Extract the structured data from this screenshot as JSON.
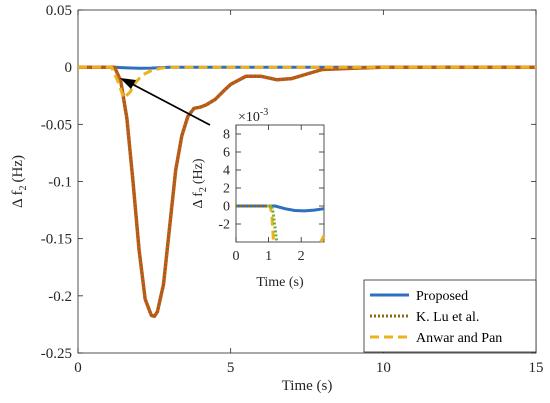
{
  "chart_data": [
    {
      "type": "line",
      "xlabel": "Time (s)",
      "ylabel": "Δ f2 (Hz)",
      "ylabel_base": "Δ f",
      "ylabel_sub": "2",
      "ylabel_unit": "(Hz)",
      "xlim": [
        0,
        15
      ],
      "ylim": [
        -0.25,
        0.05
      ],
      "xticks": [
        0,
        5,
        10,
        15
      ],
      "yticks": [
        0.05,
        0,
        -0.05,
        -0.1,
        -0.15,
        -0.2,
        -0.25
      ],
      "xtick_labels": [
        "0",
        "5",
        "10",
        "15"
      ],
      "ytick_labels": [
        "0.05",
        "0",
        "-0.05",
        "-0.1",
        "-0.15",
        "-0.2",
        "-0.25"
      ],
      "grid": false,
      "legend_position": "bottom-right",
      "series": [
        {
          "name": "Proposed",
          "color": "#2E6FC0",
          "style": "solid",
          "x": [
            0,
            1.2,
            1.5,
            2.0,
            2.4,
            2.8,
            3.0,
            15
          ],
          "y": [
            0,
            0,
            -0.0005,
            -0.001,
            -0.0008,
            -0.0003,
            0,
            0
          ]
        },
        {
          "name": "K. Lu et al.",
          "color": "#8B6A1A",
          "style": "dotted",
          "x": [
            0,
            1.2,
            1.4,
            1.6,
            1.8,
            2.0,
            2.2,
            2.4,
            2.5,
            2.6,
            2.8,
            3.0,
            3.2,
            3.4,
            3.6,
            3.8,
            4.0,
            4.2,
            4.5,
            4.8,
            5.0,
            5.5,
            6.0,
            6.5,
            7.0,
            7.5,
            8.0,
            9.0,
            10.0,
            15
          ],
          "y": [
            0,
            0,
            -0.012,
            -0.045,
            -0.1,
            -0.16,
            -0.203,
            -0.217,
            -0.218,
            -0.214,
            -0.19,
            -0.14,
            -0.09,
            -0.06,
            -0.043,
            -0.036,
            -0.035,
            -0.033,
            -0.028,
            -0.02,
            -0.015,
            -0.008,
            -0.008,
            -0.011,
            -0.01,
            -0.006,
            -0.002,
            -0.001,
            0,
            0
          ]
        },
        {
          "name": "Anwar and Pan",
          "color": "#EDB120",
          "style": "dashed",
          "x": [
            0,
            1.1,
            1.3,
            1.5,
            1.7,
            1.9,
            2.1,
            2.4,
            2.7,
            3.0,
            15
          ],
          "y": [
            0,
            0,
            -0.012,
            -0.027,
            -0.022,
            -0.013,
            -0.007,
            -0.003,
            -0.001,
            0,
            0
          ]
        },
        {
          "name": "",
          "color": "#D95319",
          "style": "solid",
          "x": [
            0,
            1.2,
            1.4,
            1.6,
            1.8,
            2.0,
            2.2,
            2.4,
            2.5,
            2.6,
            2.8,
            3.0,
            3.2,
            3.4,
            3.6,
            3.8,
            4.0,
            4.2,
            4.5,
            4.8,
            5.0,
            5.5,
            6.0,
            6.5,
            7.0,
            7.5,
            8.0,
            9.0,
            10.0,
            15
          ],
          "y": [
            0,
            0,
            -0.012,
            -0.045,
            -0.1,
            -0.16,
            -0.203,
            -0.217,
            -0.218,
            -0.214,
            -0.19,
            -0.14,
            -0.09,
            -0.06,
            -0.043,
            -0.036,
            -0.035,
            -0.033,
            -0.028,
            -0.02,
            -0.015,
            -0.008,
            -0.008,
            -0.011,
            -0.01,
            -0.006,
            -0.002,
            -0.001,
            0,
            0
          ]
        }
      ]
    },
    {
      "type": "line",
      "inset": true,
      "xlabel": "Time (s)",
      "ylabel": "Δ f2 (Hz)",
      "ylabel_base": "Δ f",
      "ylabel_sub": "2",
      "ylabel_unit": "(Hz)",
      "scale_note": "×10",
      "scale_exp": "-3",
      "xlim": [
        0,
        2.7
      ],
      "ylim": [
        -4,
        9
      ],
      "xticks": [
        0,
        1,
        2
      ],
      "yticks": [
        8,
        6,
        4,
        2,
        0,
        -2
      ],
      "xtick_labels": [
        "0",
        "1",
        "2"
      ],
      "ytick_labels": [
        "8",
        "6",
        "4",
        "2",
        "0",
        "-2"
      ],
      "series": [
        {
          "name": "Proposed",
          "color": "#2E6FC0",
          "style": "solid",
          "x": [
            0,
            1.2,
            1.5,
            1.8,
            2.1,
            2.4,
            2.7
          ],
          "y": [
            0,
            0,
            -0.3,
            -0.5,
            -0.55,
            -0.45,
            -0.3
          ]
        },
        {
          "name": "K. Lu et al.",
          "color": "#8B6A1A",
          "style": "dotted",
          "x": [
            0,
            0.95,
            1.0
          ],
          "y": [
            0,
            0,
            0
          ]
        },
        {
          "name": "Anwar and Pan",
          "color": "#EDB120",
          "style": "dashed",
          "x": [
            0.95,
            1.05,
            1.1,
            1.15
          ],
          "y": [
            0,
            0,
            -1,
            -4
          ]
        },
        {
          "name": "",
          "color": "#77AC30",
          "style": "dotted",
          "x": [
            1.0,
            1.1,
            1.15,
            1.2,
            1.25
          ],
          "y": [
            0,
            0,
            -1,
            -2.5,
            -4
          ]
        },
        {
          "name": "",
          "color": "#EDB120",
          "style": "dashed",
          "x": [
            2.6,
            2.7
          ],
          "y": [
            -4,
            -3.3
          ]
        }
      ]
    }
  ]
}
